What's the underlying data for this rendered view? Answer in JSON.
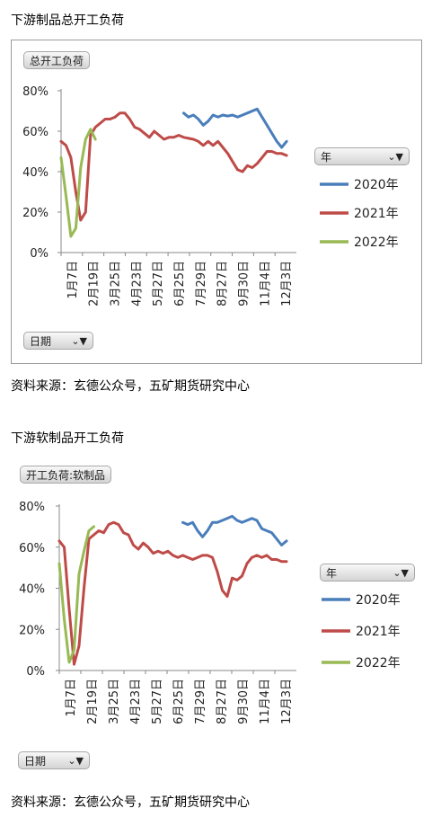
{
  "charts": [
    {
      "heading": "下游制品总开工负荷",
      "field_button": "总开工负荷",
      "axis_button": "日期",
      "legend_button": "年",
      "source": "资料来源：玄德公众号，五矿期货研究中心"
    },
    {
      "heading": "下游软制品开工负荷",
      "field_button": "开工负荷:软制品",
      "axis_button": "日期",
      "legend_button": "年",
      "source": "资料来源：玄德公众号，五矿期货研究中心"
    }
  ],
  "icons": {
    "filter": "filter-icon",
    "dropdown": "chevron-down-icon"
  },
  "chart_data": [
    {
      "type": "line",
      "title": "总开工负荷",
      "x_ticks": [
        "1月7日",
        "2月19日",
        "3月25日",
        "4月23日",
        "5月27日",
        "6月25日",
        "7月29日",
        "8月27日",
        "9月30日",
        "11月4日",
        "12月3日"
      ],
      "x_range": [
        0,
        48
      ],
      "ylim": [
        0,
        80
      ],
      "y_ticks": [
        "0%",
        "20%",
        "40%",
        "60%",
        "80%"
      ],
      "legend_title": "年",
      "series": [
        {
          "name": "2020年",
          "color": "#4a7ebb",
          "x": [
            25,
            26,
            27,
            28,
            29,
            30,
            31,
            32,
            33,
            34,
            35,
            36,
            37,
            38,
            39,
            40,
            41,
            42,
            43,
            44,
            45,
            46
          ],
          "y": [
            69,
            67,
            68,
            66,
            63,
            65,
            68,
            67,
            68,
            67.5,
            68,
            67,
            68,
            69,
            70,
            71,
            67,
            63,
            59,
            55,
            52,
            55
          ]
        },
        {
          "name": "2021年",
          "color": "#be4b48",
          "x": [
            0,
            1,
            2,
            3,
            4,
            5,
            6,
            7,
            8,
            9,
            10,
            11,
            12,
            13,
            14,
            15,
            16,
            17,
            18,
            19,
            20,
            21,
            22,
            23,
            24,
            25,
            26,
            27,
            28,
            29,
            30,
            31,
            32,
            33,
            34,
            35,
            36,
            37,
            38,
            39,
            40,
            41,
            42,
            43,
            44,
            45,
            46
          ],
          "y": [
            55,
            53,
            47,
            30,
            16,
            20,
            58,
            62,
            64,
            66,
            66,
            67,
            69,
            69,
            66,
            62,
            61,
            59,
            57,
            60,
            58,
            56,
            57,
            57,
            58,
            57,
            56.5,
            56,
            55,
            53,
            55,
            53,
            55,
            52,
            49,
            45,
            41,
            40,
            43,
            42,
            44,
            47,
            50,
            50,
            49,
            49,
            48
          ]
        },
        {
          "name": "2022年",
          "color": "#98b954",
          "x": [
            0,
            1,
            2,
            3,
            4,
            5,
            6,
            7
          ],
          "y": [
            47,
            28,
            8,
            12,
            42,
            56,
            61,
            56
          ]
        }
      ]
    },
    {
      "type": "line",
      "title": "开工负荷:软制品",
      "x_ticks": [
        "1月7日",
        "2月19日",
        "3月25日",
        "4月23日",
        "5月27日",
        "6月25日",
        "7月29日",
        "8月27日",
        "9月30日",
        "11月4日",
        "12月3日"
      ],
      "x_range": [
        0,
        48
      ],
      "ylim": [
        0,
        80
      ],
      "y_ticks": [
        "0%",
        "20%",
        "40%",
        "60%",
        "80%"
      ],
      "legend_title": "年",
      "series": [
        {
          "name": "2020年",
          "color": "#4a7ebb",
          "x": [
            25,
            26,
            27,
            28,
            29,
            30,
            31,
            32,
            33,
            34,
            35,
            36,
            37,
            38,
            39,
            40,
            41,
            42,
            43,
            44,
            45,
            46
          ],
          "y": [
            72,
            71,
            72,
            68,
            65,
            68,
            72,
            72,
            73,
            74,
            75,
            73,
            72,
            73,
            74,
            73,
            69,
            68,
            67,
            64,
            61,
            63
          ]
        },
        {
          "name": "2021年",
          "color": "#be4b48",
          "x": [
            0,
            1,
            2,
            3,
            4,
            5,
            6,
            7,
            8,
            9,
            10,
            11,
            12,
            13,
            14,
            15,
            16,
            17,
            18,
            19,
            20,
            21,
            22,
            23,
            24,
            25,
            26,
            27,
            28,
            29,
            30,
            31,
            32,
            33,
            34,
            35,
            36,
            37,
            38,
            39,
            40,
            41,
            42,
            43,
            44,
            45,
            46
          ],
          "y": [
            63,
            60,
            30,
            3,
            12,
            40,
            64,
            66,
            68,
            67,
            71,
            72,
            71,
            67,
            66,
            61,
            59,
            62,
            60,
            57,
            58,
            57,
            58,
            56,
            55,
            56,
            55,
            54,
            55,
            56,
            56,
            55,
            48,
            39,
            36,
            45,
            44,
            46,
            52,
            55,
            56,
            55,
            56,
            54,
            54,
            53,
            53
          ]
        },
        {
          "name": "2022年",
          "color": "#98b954",
          "x": [
            0,
            1,
            2,
            3,
            4,
            5,
            6,
            7
          ],
          "y": [
            52,
            25,
            4,
            10,
            47,
            58,
            68,
            70
          ]
        }
      ]
    }
  ]
}
